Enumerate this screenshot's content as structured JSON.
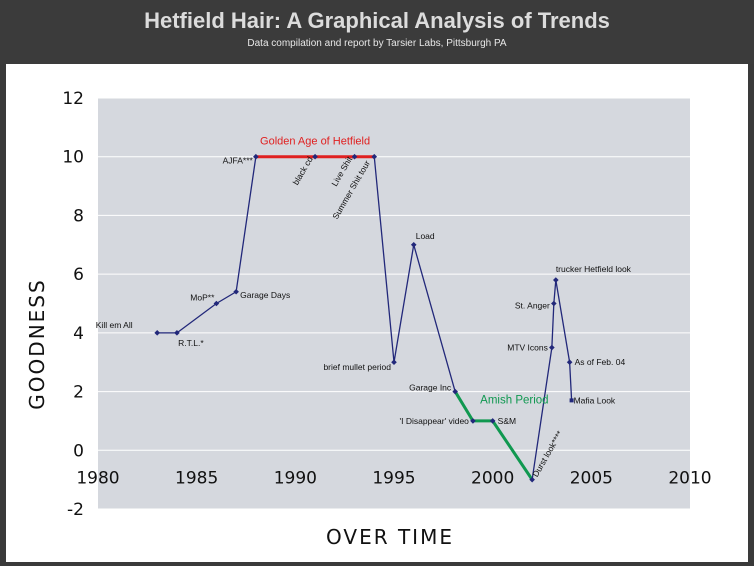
{
  "page": {
    "title": "Hetfield Hair: A Graphical Analysis of Trends",
    "subtitle": "Data compilation and report by Tarsier Labs, Pittsburgh PA"
  },
  "chart_data": {
    "type": "line",
    "title": "Hetfield Hair: A Graphical Analysis of Trends",
    "subtitle": "Data compilation and report by Tarsier Labs, Pittsburgh PA",
    "xlabel": "OVER TIME",
    "ylabel": "GOODNESS",
    "xlim": [
      1980,
      2010
    ],
    "ylim": [
      -2,
      12
    ],
    "xticks": [
      1980,
      1985,
      1990,
      1995,
      2000,
      2005,
      2010
    ],
    "yticks": [
      -2,
      0,
      2,
      4,
      6,
      8,
      10,
      12
    ],
    "grid": "horizontal",
    "colors": {
      "main": "#22287a",
      "golden": "#e02020",
      "amish": "#109850",
      "plot_bg": "#d5d8de",
      "grid": "#ffffff"
    },
    "series": [
      {
        "color": "#22287a",
        "points": [
          {
            "x": 1983,
            "y": 4,
            "label": "Kill em All"
          },
          {
            "x": 1984,
            "y": 4,
            "label": "R.T.L.*"
          },
          {
            "x": 1986,
            "y": 5,
            "label": "MoP**"
          },
          {
            "x": 1987,
            "y": 5.4,
            "label": "Garage Days"
          },
          {
            "x": 1988,
            "y": 10,
            "label": "AJFA***"
          },
          {
            "x": 1991,
            "y": 10,
            "label": "black cd"
          },
          {
            "x": 1993,
            "y": 10,
            "label": "Live Shit"
          },
          {
            "x": 1994,
            "y": 10,
            "label": "Summer Shit tour"
          },
          {
            "x": 1995,
            "y": 3,
            "label": "brief mullet period"
          },
          {
            "x": 1996,
            "y": 7,
            "label": "Load"
          },
          {
            "x": 1998.1,
            "y": 2,
            "label": "Garage Inc"
          },
          {
            "x": 1999,
            "y": 1,
            "label": "'I Disappear' video"
          },
          {
            "x": 2000,
            "y": 1,
            "label": "S&M"
          },
          {
            "x": 2002,
            "y": -1,
            "label": "Durst look****"
          },
          {
            "x": 2003,
            "y": 3.5,
            "label": "MTV Icons"
          },
          {
            "x": 2003.1,
            "y": 5,
            "label": "St. Anger"
          },
          {
            "x": 2003.2,
            "y": 5.8,
            "label": "trucker Hetfield look"
          },
          {
            "x": 2003.9,
            "y": 3,
            "label": "As of Feb. 04"
          },
          {
            "x": 2004,
            "y": 1.7,
            "label": "Mafia Look"
          }
        ]
      }
    ],
    "highlights": [
      {
        "name": "Golden Age of Hetfield",
        "color": "#e02020",
        "x": [
          1988,
          1994
        ],
        "y": [
          10,
          10
        ]
      },
      {
        "name": "Amish Period",
        "color": "#109850",
        "x": [
          1998.1,
          1999,
          2000,
          2002
        ],
        "y": [
          2,
          1,
          1,
          -1
        ]
      }
    ]
  }
}
